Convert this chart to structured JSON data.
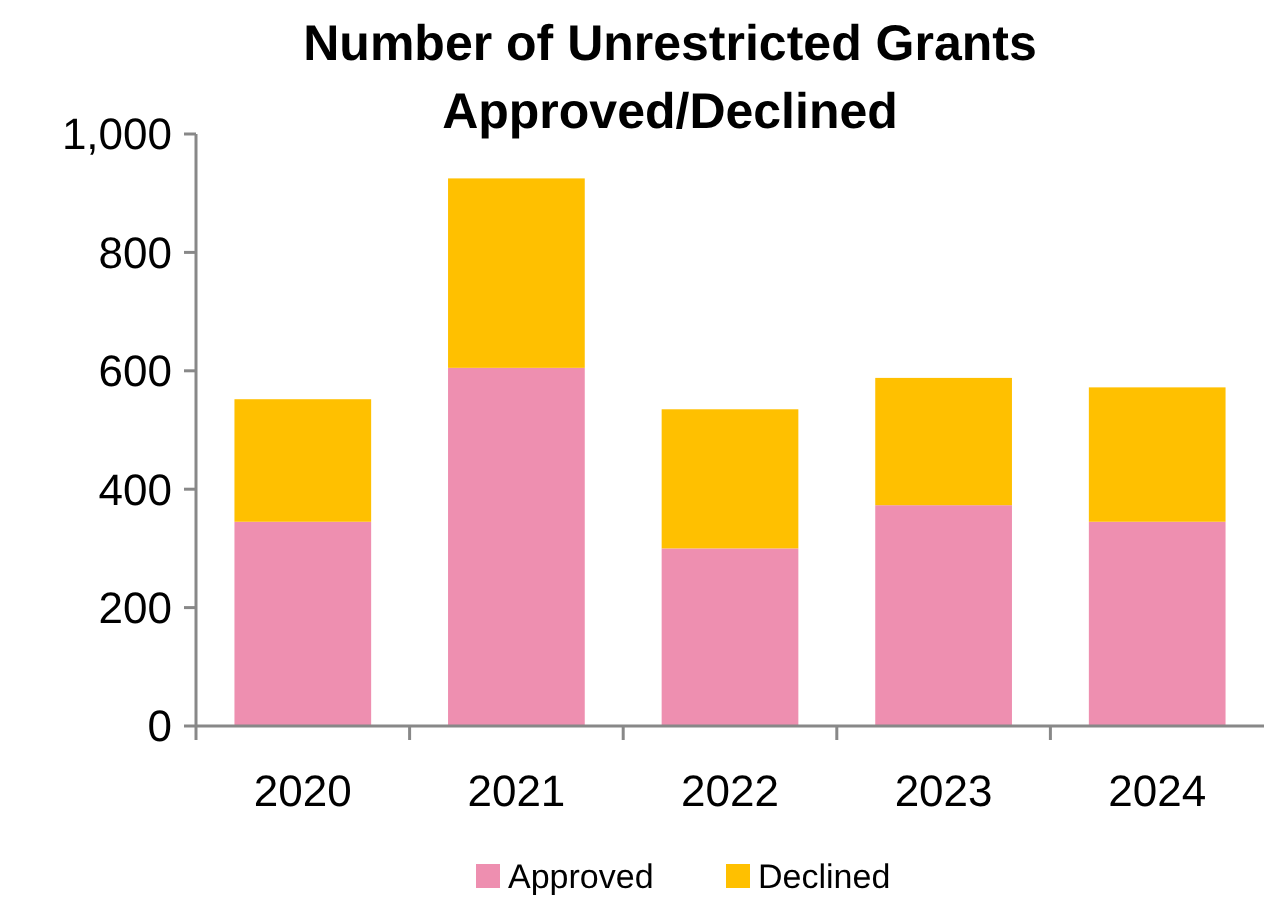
{
  "chart_data": {
    "type": "bar",
    "title": "Number of Unrestricted Grants Approved/Declined",
    "categories": [
      "2020",
      "2021",
      "2022",
      "2023",
      "2024"
    ],
    "stacked": true,
    "series": [
      {
        "name": "Approved",
        "color": "#ee8fb0",
        "values": [
          345,
          605,
          300,
          373,
          345
        ]
      },
      {
        "name": "Declined",
        "color": "#ffc000",
        "values": [
          207,
          320,
          235,
          215,
          227
        ]
      }
    ],
    "ylim": [
      0,
      1000
    ],
    "yticks": [
      0,
      200,
      400,
      600,
      800,
      {
        "value": 1000,
        "label": "1,000"
      }
    ],
    "grid": false,
    "legend": "bottom"
  }
}
